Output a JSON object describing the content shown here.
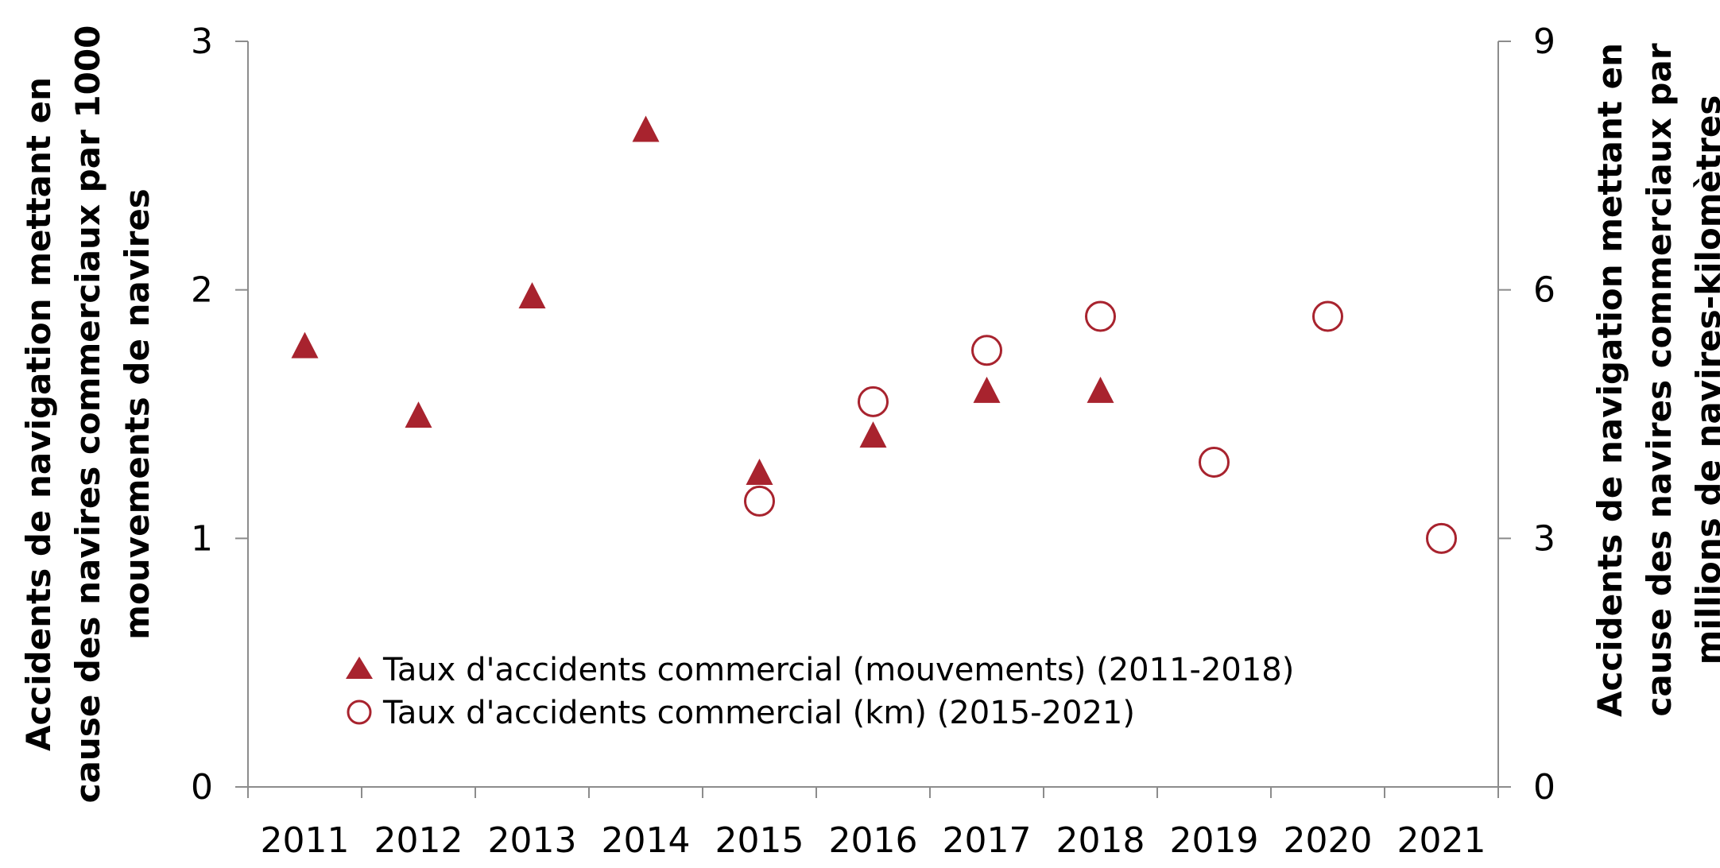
{
  "chart_data": {
    "type": "scatter",
    "title": "",
    "categories": [
      "2011",
      "2012",
      "2013",
      "2014",
      "2015",
      "2016",
      "2017",
      "2018",
      "2019",
      "2020",
      "2021"
    ],
    "y_left": {
      "label": "Accidents de navigation mettant en cause des navires commerciaux par 1000 mouvements de navires",
      "label_lines": [
        "Accidents de navigation mettant en",
        "cause des navires commerciaux par 1000",
        "mouvements de navires"
      ],
      "range": [
        0,
        3
      ],
      "ticks": [
        "0",
        "1",
        "2",
        "3"
      ]
    },
    "y_right": {
      "label": "Accidents de navigation mettant en cause des navires commerciaux par millions de navires-kilomètres",
      "label_lines": [
        "Accidents de navigation mettant en",
        "cause des navires commerciaux par",
        "millions de navires-kilomètres"
      ],
      "range": [
        0,
        9
      ],
      "ticks": [
        "0",
        "3",
        "6",
        "9"
      ]
    },
    "series": [
      {
        "name": "Taux d'accidents commercial (mouvements) (2011-2018)",
        "axis": "left",
        "marker": "triangle",
        "color": "#a8232e",
        "x": [
          "2011",
          "2012",
          "2013",
          "2014",
          "2015",
          "2016",
          "2017",
          "2018"
        ],
        "values": [
          1.77,
          1.49,
          1.97,
          2.64,
          1.26,
          1.41,
          1.59,
          1.59
        ]
      },
      {
        "name": "Taux d'accidents commercial (km) (2015-2021)",
        "axis": "right",
        "marker": "circle-open",
        "color": "#a8232e",
        "x": [
          "2015",
          "2016",
          "2017",
          "2018",
          "2019",
          "2020",
          "2021"
        ],
        "values": [
          3.45,
          4.65,
          5.27,
          5.68,
          3.92,
          5.68,
          3.0
        ]
      }
    ],
    "legend_position": "bottom-left-inside",
    "grid": false
  }
}
